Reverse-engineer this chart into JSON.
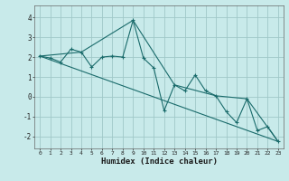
{
  "xlabel": "Humidex (Indice chaleur)",
  "ylabel": "",
  "background_color": "#c8eaea",
  "grid_color": "#a0c8c8",
  "line_color": "#1a6b6b",
  "xlim": [
    -0.5,
    23.5
  ],
  "ylim": [
    -2.6,
    4.6
  ],
  "yticks": [
    -2,
    -1,
    0,
    1,
    2,
    3,
    4
  ],
  "xticks": [
    0,
    1,
    2,
    3,
    4,
    5,
    6,
    7,
    8,
    9,
    10,
    11,
    12,
    13,
    14,
    15,
    16,
    17,
    18,
    19,
    20,
    21,
    22,
    23
  ],
  "line1_x": [
    0,
    1,
    2,
    3,
    4,
    5,
    6,
    7,
    8,
    9,
    10,
    11,
    12,
    13,
    14,
    15,
    16,
    17,
    18,
    19,
    20,
    21,
    22,
    23
  ],
  "line1_y": [
    2.05,
    1.95,
    1.75,
    2.4,
    2.25,
    1.5,
    2.0,
    2.05,
    2.0,
    3.85,
    1.95,
    1.45,
    -0.7,
    0.6,
    0.3,
    1.1,
    0.3,
    0.05,
    -0.75,
    -1.3,
    -0.1,
    -1.7,
    -1.5,
    -2.25
  ],
  "line2_x": [
    0,
    23
  ],
  "line2_y": [
    2.05,
    -2.25
  ],
  "line3_x": [
    0,
    4,
    9,
    13,
    17,
    20,
    23
  ],
  "line3_y": [
    2.05,
    2.25,
    3.85,
    0.6,
    0.05,
    -0.1,
    -2.25
  ]
}
